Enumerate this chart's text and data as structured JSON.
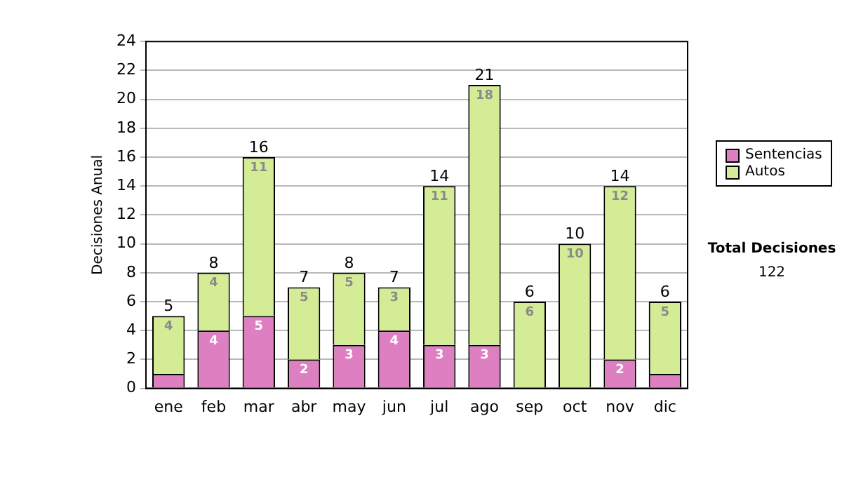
{
  "chart_data": {
    "type": "bar",
    "stacked": true,
    "ylabel": "Decisiones Anual",
    "categories": [
      "ene",
      "feb",
      "mar",
      "abr",
      "may",
      "jun",
      "jul",
      "ago",
      "sep",
      "oct",
      "nov",
      "dic"
    ],
    "series": [
      {
        "name": "Sentencias",
        "color": "#dd7fc0",
        "values": [
          1,
          4,
          5,
          2,
          3,
          4,
          3,
          3,
          0,
          0,
          2,
          1
        ],
        "value_labels": [
          null,
          "4",
          "5",
          "2",
          "3",
          "4",
          "3",
          "3",
          null,
          null,
          "2",
          null
        ]
      },
      {
        "name": "Autos",
        "color": "#d4ec96",
        "values": [
          4,
          4,
          11,
          5,
          5,
          3,
          11,
          18,
          6,
          10,
          12,
          5
        ],
        "value_labels": [
          "4",
          "4",
          "11",
          "5",
          "5",
          "3",
          "11",
          "18",
          "6",
          "10",
          "12",
          "5"
        ]
      }
    ],
    "totals": [
      "5",
      "8",
      "16",
      "7",
      "8",
      "7",
      "14",
      "21",
      "6",
      "10",
      "14",
      "6"
    ],
    "ylim": [
      0,
      24
    ],
    "yticks": [
      0,
      2,
      4,
      6,
      8,
      10,
      12,
      14,
      16,
      18,
      20,
      22,
      24
    ],
    "grid": "y",
    "legend": "right",
    "annotations": [
      "Total Decisiones",
      "122"
    ]
  }
}
